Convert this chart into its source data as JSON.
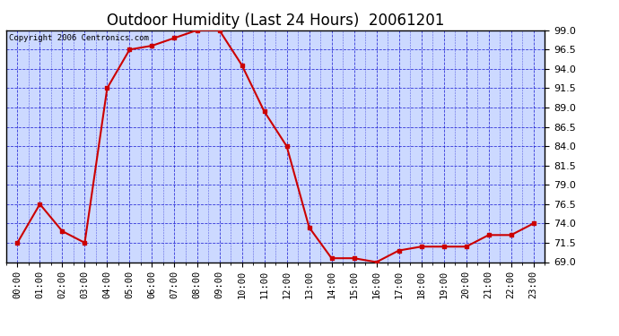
{
  "title": "Outdoor Humidity (Last 24 Hours)  20061201",
  "copyright": "Copyright 2006 Centronics.com",
  "x_labels": [
    "00:00",
    "01:00",
    "02:00",
    "03:00",
    "04:00",
    "05:00",
    "06:00",
    "07:00",
    "08:00",
    "09:00",
    "10:00",
    "11:00",
    "12:00",
    "13:00",
    "14:00",
    "15:00",
    "16:00",
    "17:00",
    "18:00",
    "19:00",
    "20:00",
    "21:00",
    "22:00",
    "23:00"
  ],
  "y_values": [
    71.5,
    76.5,
    73.0,
    71.5,
    91.5,
    96.5,
    97.0,
    98.0,
    99.0,
    99.0,
    94.5,
    88.5,
    84.0,
    73.5,
    69.5,
    69.5,
    69.0,
    70.5,
    71.0,
    71.0,
    71.0,
    72.5,
    72.5,
    74.0
  ],
  "y_min": 69.0,
  "y_max": 99.0,
  "y_ticks": [
    69.0,
    71.5,
    74.0,
    76.5,
    79.0,
    81.5,
    84.0,
    86.5,
    89.0,
    91.5,
    94.0,
    96.5,
    99.0
  ],
  "line_color": "#cc0000",
  "marker_color": "#cc0000",
  "bg_color": "#ccd9ff",
  "grid_color": "#0000cc",
  "border_color": "#000000",
  "title_color": "#000000",
  "copyright_color": "#000000",
  "title_fontsize": 12,
  "copyright_fontsize": 6.5,
  "tick_fontsize": 7.5,
  "ytick_fontsize": 8
}
